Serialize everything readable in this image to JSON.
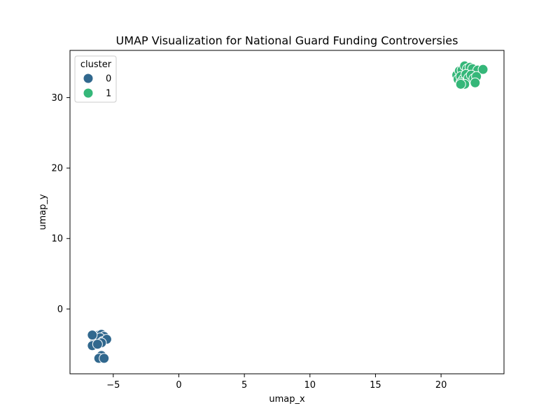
{
  "chart_data": {
    "type": "scatter",
    "title": "UMAP Visualization for National Guard Funding Controversies",
    "xlabel": "umap_x",
    "ylabel": "umap_y",
    "xlim": [
      -8.3,
      24.8
    ],
    "ylim": [
      -9.2,
      36.7
    ],
    "xticks": [
      -5,
      0,
      5,
      10,
      15,
      20
    ],
    "yticks": [
      0,
      10,
      20,
      30
    ],
    "grid": false,
    "legend": {
      "title": "cluster",
      "placement": "top-left"
    },
    "series": [
      {
        "name": "0",
        "color": "#31688e",
        "points": [
          {
            "x": -6.6,
            "y": -3.8
          },
          {
            "x": -6.3,
            "y": -4.0
          },
          {
            "x": -6.1,
            "y": -3.7
          },
          {
            "x": -5.9,
            "y": -3.6
          },
          {
            "x": -5.7,
            "y": -3.9
          },
          {
            "x": -6.4,
            "y": -4.3
          },
          {
            "x": -6.0,
            "y": -4.1
          },
          {
            "x": -5.8,
            "y": -4.6
          },
          {
            "x": -5.5,
            "y": -4.3
          },
          {
            "x": -5.9,
            "y": -4.8
          },
          {
            "x": -6.6,
            "y": -5.2
          },
          {
            "x": -6.2,
            "y": -5.0
          },
          {
            "x": -5.9,
            "y": -6.6
          },
          {
            "x": -6.1,
            "y": -7.0
          },
          {
            "x": -5.7,
            "y": -7.0
          },
          {
            "x": -6.6,
            "y": -3.7
          }
        ]
      },
      {
        "name": "1",
        "color": "#35b779",
        "points": [
          {
            "x": 21.2,
            "y": 33.2
          },
          {
            "x": 21.4,
            "y": 33.8
          },
          {
            "x": 21.6,
            "y": 33.9
          },
          {
            "x": 21.8,
            "y": 34.5
          },
          {
            "x": 22.0,
            "y": 34.1
          },
          {
            "x": 22.2,
            "y": 34.3
          },
          {
            "x": 22.4,
            "y": 34.1
          },
          {
            "x": 22.8,
            "y": 33.9
          },
          {
            "x": 23.2,
            "y": 34.0
          },
          {
            "x": 21.3,
            "y": 32.6
          },
          {
            "x": 21.5,
            "y": 33.0
          },
          {
            "x": 21.7,
            "y": 32.6
          },
          {
            "x": 21.9,
            "y": 33.3
          },
          {
            "x": 22.1,
            "y": 32.8
          },
          {
            "x": 22.3,
            "y": 33.2
          },
          {
            "x": 22.5,
            "y": 32.7
          },
          {
            "x": 22.7,
            "y": 33.0
          },
          {
            "x": 21.5,
            "y": 32.1
          },
          {
            "x": 21.8,
            "y": 31.9
          },
          {
            "x": 22.6,
            "y": 32.1
          },
          {
            "x": 21.5,
            "y": 31.9
          }
        ]
      }
    ]
  }
}
